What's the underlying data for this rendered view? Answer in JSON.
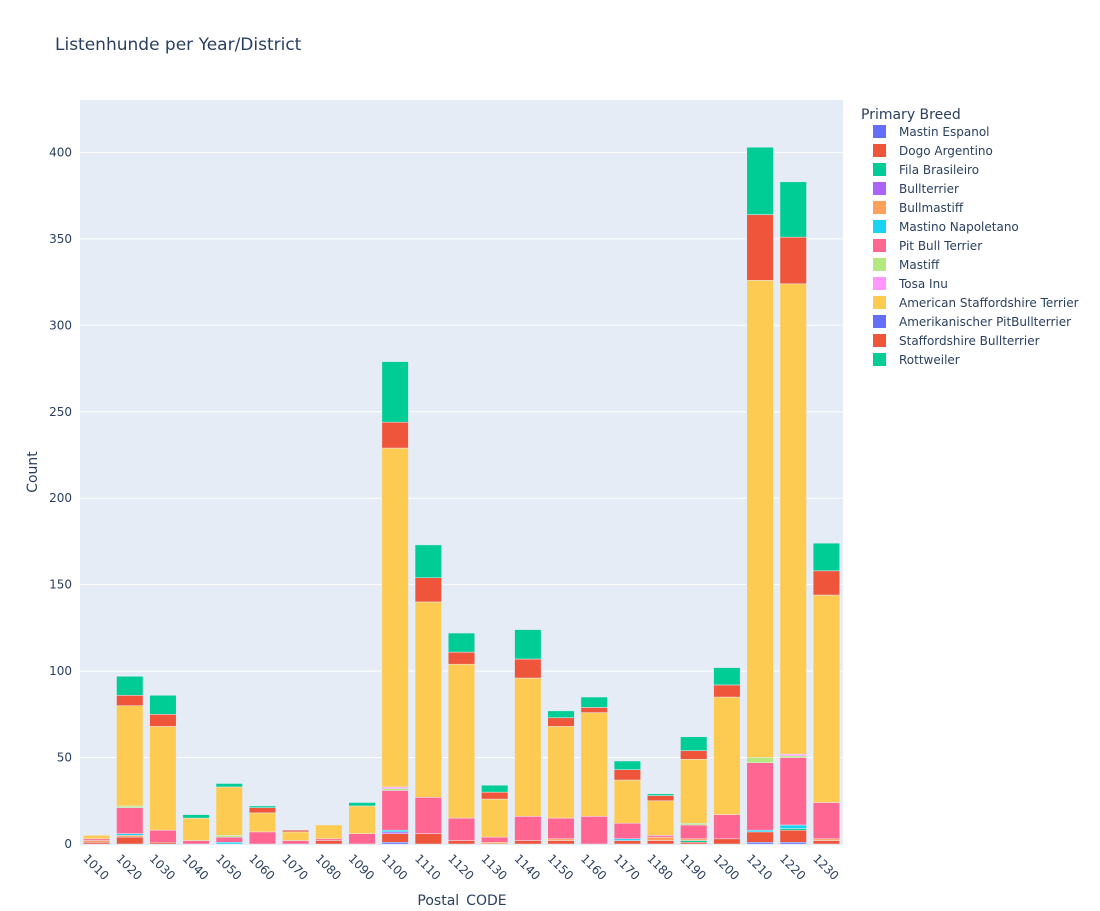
{
  "chart_data": {
    "type": "bar",
    "stacked": true,
    "title": "Listenhunde per Year/District",
    "xlabel": "Postal_CODE",
    "ylabel": "Count",
    "ylim": [
      0,
      430
    ],
    "yticks": [
      0,
      50,
      100,
      150,
      200,
      250,
      300,
      350,
      400
    ],
    "grid": true,
    "legend_title": "Primary Breed",
    "legend_position": "right",
    "categories": [
      "1010",
      "1020",
      "1030",
      "1040",
      "1050",
      "1060",
      "1070",
      "1080",
      "1090",
      "1100",
      "1110",
      "1120",
      "1130",
      "1140",
      "1150",
      "1160",
      "1170",
      "1180",
      "1190",
      "1200",
      "1210",
      "1220",
      "1230"
    ],
    "series": [
      {
        "name": "Mastin Espanol",
        "color": "#636efa",
        "values": [
          0,
          0,
          0,
          0,
          0,
          0,
          0,
          0,
          0,
          1,
          0,
          0,
          0,
          0,
          0,
          0,
          0,
          0,
          0,
          0,
          1,
          1,
          0
        ]
      },
      {
        "name": "Dogo Argentino",
        "color": "#EF553B",
        "values": [
          1,
          4,
          1,
          0,
          0,
          0,
          0,
          2,
          0,
          5,
          6,
          2,
          0,
          2,
          2,
          0,
          2,
          2,
          1,
          3,
          6,
          7,
          2
        ]
      },
      {
        "name": "Fila Brasileiro",
        "color": "#00cc96",
        "values": [
          0,
          0,
          0,
          0,
          0,
          0,
          0,
          0,
          0,
          0,
          0,
          0,
          0,
          0,
          0,
          0,
          0,
          0,
          1,
          0,
          0,
          1,
          0
        ]
      },
      {
        "name": "Bullterrier",
        "color": "#ab63fa",
        "values": [
          0,
          0,
          0,
          0,
          0,
          0,
          0,
          0,
          0,
          1,
          0,
          0,
          0,
          0,
          0,
          0,
          0,
          0,
          0,
          0,
          0,
          0,
          0
        ]
      },
      {
        "name": "Bullmastiff",
        "color": "#FFA15A",
        "values": [
          1,
          1,
          0,
          0,
          0,
          0,
          0,
          0,
          0,
          0,
          0,
          0,
          1,
          0,
          1,
          0,
          0,
          2,
          1,
          0,
          0,
          0,
          1
        ]
      },
      {
        "name": "Mastino Napoletano",
        "color": "#19d3f3",
        "values": [
          0,
          1,
          0,
          0,
          1,
          0,
          0,
          0,
          0,
          1,
          0,
          0,
          0,
          0,
          0,
          0,
          1,
          0,
          0,
          0,
          1,
          2,
          0
        ]
      },
      {
        "name": "Pit Bull Terrier",
        "color": "#FF6692",
        "values": [
          1,
          15,
          7,
          2,
          3,
          7,
          2,
          1,
          6,
          23,
          21,
          13,
          3,
          14,
          12,
          16,
          9,
          1,
          8,
          14,
          39,
          39,
          21
        ]
      },
      {
        "name": "Mastiff",
        "color": "#B6E880",
        "values": [
          0,
          1,
          0,
          0,
          1,
          0,
          0,
          0,
          0,
          1,
          0,
          0,
          0,
          0,
          0,
          0,
          0,
          0,
          1,
          0,
          3,
          1,
          0
        ]
      },
      {
        "name": "Tosa Inu",
        "color": "#FF97FF",
        "values": [
          0,
          0,
          0,
          0,
          0,
          0,
          0,
          0,
          0,
          1,
          0,
          0,
          0,
          0,
          0,
          0,
          0,
          0,
          0,
          0,
          0,
          1,
          0
        ]
      },
      {
        "name": "American Staffordshire Terrier",
        "color": "#FECB52",
        "values": [
          2,
          58,
          60,
          13,
          28,
          11,
          5,
          8,
          16,
          196,
          113,
          89,
          22,
          80,
          53,
          60,
          25,
          20,
          37,
          68,
          276,
          272,
          120
        ]
      },
      {
        "name": "Amerikanischer PitBullterrier",
        "color": "#636efa",
        "values": [
          0,
          0,
          0,
          0,
          0,
          0,
          0,
          0,
          0,
          0,
          0,
          0,
          0,
          0,
          0,
          0,
          0,
          0,
          0,
          0,
          0,
          0,
          0
        ]
      },
      {
        "name": "Staffordshire Bullterrier",
        "color": "#EF553B",
        "values": [
          0,
          6,
          7,
          0,
          0,
          3,
          1,
          0,
          0,
          15,
          14,
          7,
          4,
          11,
          5,
          3,
          6,
          3,
          5,
          7,
          38,
          27,
          14
        ]
      },
      {
        "name": "Rottweiler",
        "color": "#00cc96",
        "values": [
          0,
          11,
          11,
          2,
          2,
          1,
          0,
          0,
          2,
          35,
          19,
          11,
          4,
          17,
          4,
          6,
          5,
          1,
          8,
          10,
          39,
          32,
          16
        ]
      }
    ]
  }
}
